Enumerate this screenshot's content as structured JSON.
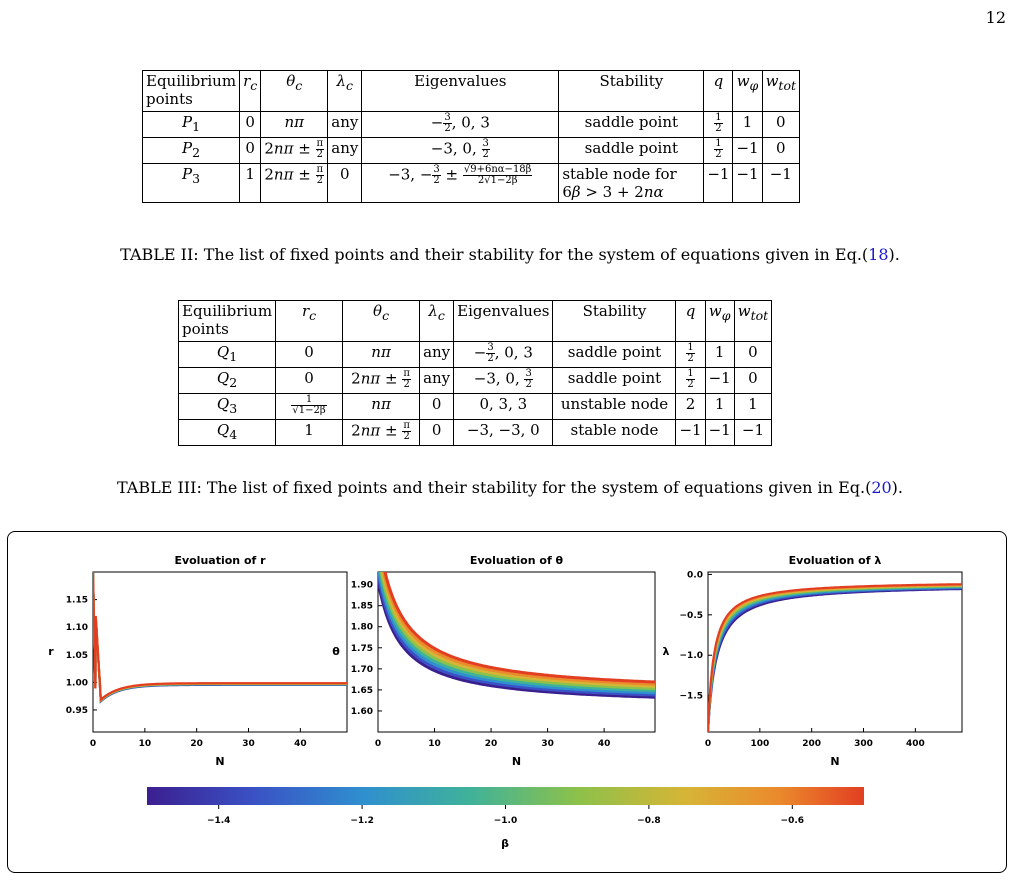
{
  "page_number": "12",
  "table2": {
    "headers": [
      "Equilibrium points",
      "r_c",
      "θ_c",
      "λ_c",
      "Eigenvalues",
      "Stability",
      "q",
      "w_φ",
      "w_tot"
    ],
    "rows": [
      {
        "point": "P1",
        "rc": "0",
        "theta": "nπ",
        "lambda": "any",
        "eigen": "−3/2, 0, 3",
        "stability": "saddle point",
        "q": "1/2",
        "wphi": "1",
        "wtot": "0"
      },
      {
        "point": "P2",
        "rc": "0",
        "theta": "2nπ ± π/2",
        "lambda": "any",
        "eigen": "−3, 0, 3/2",
        "stability": "saddle point",
        "q": "1/2",
        "wphi": "−1",
        "wtot": "0"
      },
      {
        "point": "P3",
        "rc": "1",
        "theta": "2nπ ± π/2",
        "lambda": "0",
        "eigen": "−3, −3/2 ± √(9+6nα−18β)/(2√(1−2β))",
        "stability": "stable node for 6β > 3 + 2nα",
        "q": "−1",
        "wphi": "−1",
        "wtot": "−1"
      }
    ],
    "caption": "TABLE II: The list of fixed points and their stability for the system of equations given in Eq.(18)."
  },
  "table3": {
    "headers": [
      "Equilibrium points",
      "r_c",
      "θ_c",
      "λ_c",
      "Eigenvalues",
      "Stability",
      "q",
      "w_φ",
      "w_tot"
    ],
    "rows": [
      {
        "point": "Q1",
        "rc": "0",
        "theta": "nπ",
        "lambda": "any",
        "eigen": "−3/2, 0, 3",
        "stability": "saddle point",
        "q": "1/2",
        "wphi": "1",
        "wtot": "0"
      },
      {
        "point": "Q2",
        "rc": "0",
        "theta": "2nπ ± π/2",
        "lambda": "any",
        "eigen": "−3, 0, 3/2",
        "stability": "saddle point",
        "q": "1/2",
        "wphi": "−1",
        "wtot": "0"
      },
      {
        "point": "Q3",
        "rc": "1/√(1−2β)",
        "theta": "nπ",
        "lambda": "0",
        "eigen": "0, 3, 3",
        "stability": "unstable node",
        "q": "2",
        "wphi": "1",
        "wtot": "1"
      },
      {
        "point": "Q4",
        "rc": "1",
        "theta": "2nπ ± π/2",
        "lambda": "0",
        "eigen": "−3, −3, 0",
        "stability": "stable node",
        "q": "−1",
        "wphi": "−1",
        "wtot": "−1"
      }
    ],
    "caption": "TABLE III: The list of fixed points and their stability for the system of equations given in Eq.(20)."
  },
  "figure": {
    "colors": [
      "#3b1f8f",
      "#3a52c5",
      "#2f8fcf",
      "#3fb29a",
      "#8cc14a",
      "#d6b536",
      "#eb8a2c",
      "#e23f22"
    ],
    "colorbar": {
      "label": "β",
      "ticks": [
        "−1.4",
        "−1.2",
        "−1.0",
        "−0.8",
        "−0.6"
      ],
      "range": [
        -1.5,
        -0.5
      ]
    },
    "chart_data": [
      {
        "type": "line",
        "title": "Evoluation of r",
        "xlabel": "N",
        "ylabel": "r",
        "xlim": [
          0,
          49
        ],
        "ylim": [
          0.91,
          1.2
        ],
        "xticks": [
          "0",
          "10",
          "20",
          "30",
          "40"
        ],
        "yticks": [
          "0.95",
          "1.00",
          "1.05",
          "1.10",
          "1.15"
        ],
        "description": "All β curves nearly overlap: start ~1.2 at N=0, dip to ~0.97 at N≈1.5, then settle to ~1.0"
      },
      {
        "type": "line",
        "title": "Evoluation of θ",
        "xlabel": "N",
        "ylabel": "θ",
        "xlim": [
          0,
          49
        ],
        "ylim": [
          1.55,
          1.93
        ],
        "xticks": [
          "0",
          "10",
          "20",
          "30",
          "40"
        ],
        "yticks": [
          "1.60",
          "1.65",
          "1.70",
          "1.75",
          "1.80",
          "1.85",
          "1.90"
        ],
        "description": "Curves decay from ~1.9 toward ~1.60–1.62 at N=49; higher β lies higher"
      },
      {
        "type": "line",
        "title": "Evoluation of λ",
        "xlabel": "N",
        "ylabel": "λ",
        "xlim": [
          0,
          490
        ],
        "ylim": [
          -1.95,
          0.03
        ],
        "xticks": [
          "0",
          "100",
          "200",
          "300",
          "400"
        ],
        "yticks": [
          "0.0",
          "−0.5",
          "−1.0",
          "−1.5"
        ],
        "description": "Curves rise sharply from about −1.95 near N=0 toward ~−0.1 by N=490"
      }
    ]
  }
}
